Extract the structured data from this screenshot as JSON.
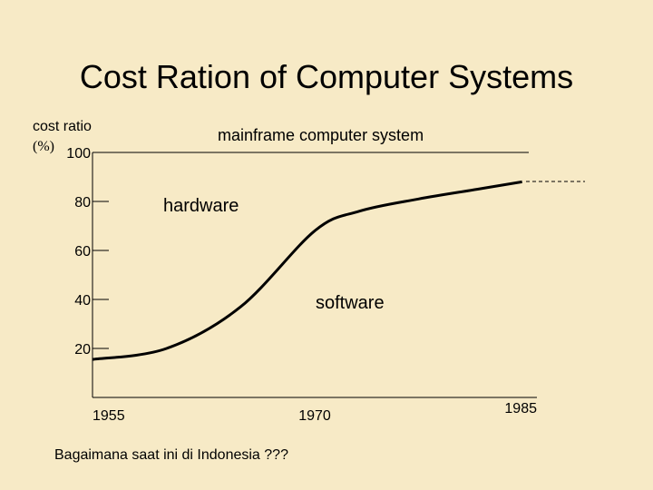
{
  "chart_data": {
    "type": "line",
    "title": "Cost Ration of Computer Systems",
    "y_label": [
      "cost ratio",
      "(%)"
    ],
    "annotations": [
      "mainframe computer system",
      "hardware",
      "software"
    ],
    "footnote": "Bagaimana saat ini di Indonesia ???",
    "x": [
      1955,
      1960,
      1965,
      1970,
      1973,
      1977,
      1981,
      1984
    ],
    "series": [
      {
        "color": "#000000",
        "values": [
          15.5,
          20,
          37,
          68,
          76,
          81,
          85,
          88
        ]
      }
    ],
    "xlim": [
      1955,
      1985
    ],
    "xticks": [
      1955,
      1970,
      1985
    ],
    "ylim": [
      0,
      100
    ],
    "yticks": [
      20,
      40,
      60,
      80,
      100
    ]
  }
}
